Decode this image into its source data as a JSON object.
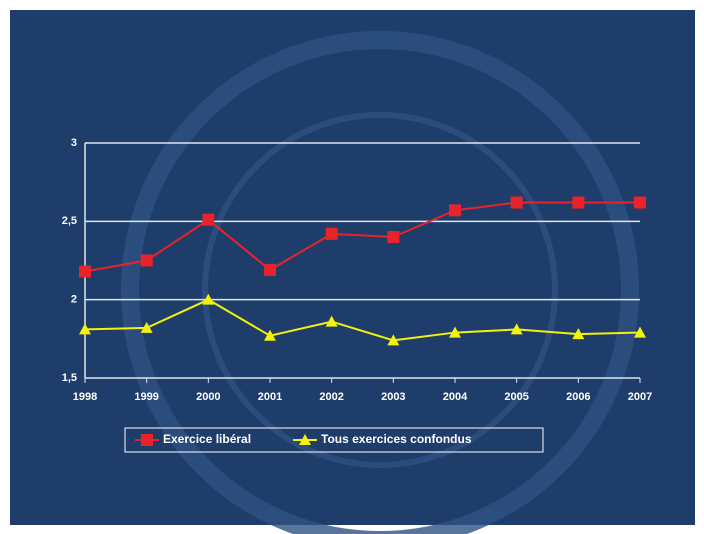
{
  "chart_data": {
    "type": "line",
    "categories": [
      "1998",
      "1999",
      "2000",
      "2001",
      "2002",
      "2003",
      "2004",
      "2005",
      "2006",
      "2007"
    ],
    "series": [
      {
        "name": "Exercice libéral",
        "color": "#e8232a",
        "marker": "square",
        "values": [
          2.18,
          2.25,
          2.51,
          2.19,
          2.42,
          2.4,
          2.57,
          2.62,
          2.62,
          2.62
        ]
      },
      {
        "name": "Tous exercices confondus",
        "color": "#f2f20a",
        "marker": "triangle",
        "values": [
          1.81,
          1.82,
          2.0,
          1.77,
          1.86,
          1.74,
          1.79,
          1.81,
          1.78,
          1.79
        ]
      }
    ],
    "ylim": [
      1.5,
      3
    ],
    "yticks": [
      {
        "value": 1.5,
        "label": "1,5"
      },
      2,
      {
        "value": 2.5,
        "label": "2,5"
      },
      3
    ],
    "grid": true
  }
}
